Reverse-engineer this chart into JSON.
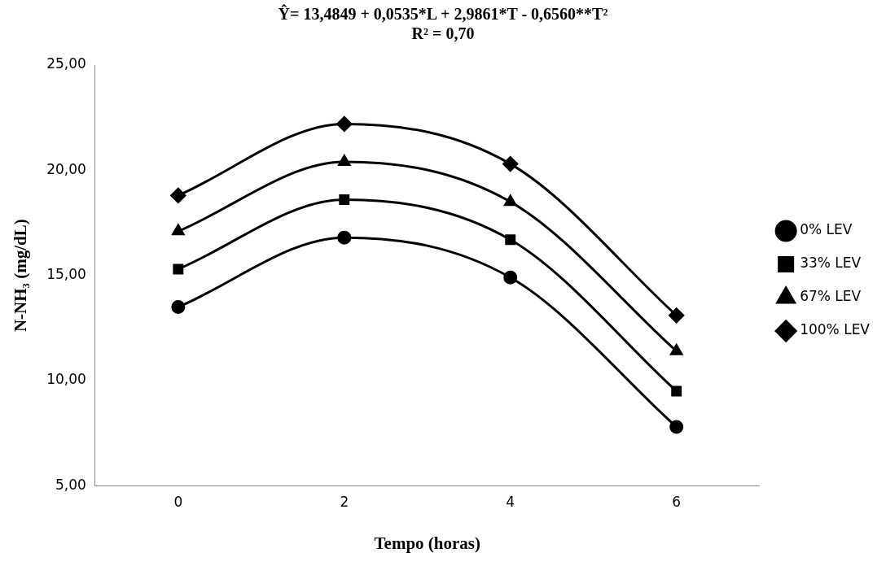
{
  "chart_data": {
    "type": "line",
    "title": "Ŷ= 13,4849 + 0,0535*L + 2,9861*T - 0,6560**T²",
    "subtitle": "R² = 0,70",
    "xlabel": "Tempo (horas)",
    "ylabel": "N-NH₃ (mg/dL)",
    "categories": [
      "0",
      "2",
      "4",
      "6"
    ],
    "series": [
      {
        "name": "0% LEV",
        "color": "#000000",
        "marker": "circle",
        "values": [
          13.5,
          16.8,
          14.9,
          7.8
        ]
      },
      {
        "name": "33% LEV",
        "color": "#000000",
        "marker": "square",
        "values": [
          15.3,
          18.6,
          16.7,
          9.5
        ]
      },
      {
        "name": "67% LEV",
        "color": "#000000",
        "marker": "triangle",
        "values": [
          17.1,
          20.4,
          18.5,
          11.4
        ]
      },
      {
        "name": "100% LEV",
        "color": "#000000",
        "marker": "diamond",
        "values": [
          18.8,
          22.2,
          20.3,
          13.1
        ]
      }
    ],
    "ylim": [
      5,
      25
    ],
    "yticks": [
      {
        "value": 5,
        "label": "5,00"
      },
      {
        "value": 10,
        "label": "10,00"
      },
      {
        "value": 15,
        "label": "15,00"
      },
      {
        "value": 20,
        "label": "20,00"
      },
      {
        "value": 25,
        "label": "25,00"
      }
    ],
    "grid": false,
    "legend": "right",
    "line_style": "solid"
  }
}
